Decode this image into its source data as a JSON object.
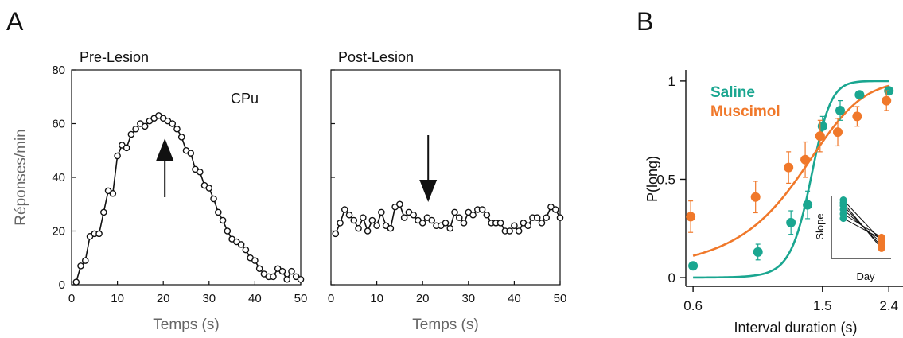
{
  "panel_labels": {
    "a": "A",
    "b": "B"
  },
  "colors": {
    "saline": "#1aa690",
    "muscimol": "#f0782a",
    "line": "#111111"
  },
  "chart_data": [
    {
      "type": "line",
      "title": "Pre-Lesion",
      "annotation": "CPu",
      "xlabel": "Temps (s)",
      "ylabel": "Réponses/min",
      "xlim": [
        0,
        50
      ],
      "ylim": [
        0,
        80
      ],
      "xticks": [
        "0",
        "10",
        "20",
        "30",
        "40",
        "50"
      ],
      "yticks": [
        "0",
        "20",
        "40",
        "60",
        "80"
      ],
      "marker": "open-circle",
      "arrow": {
        "direction": "up",
        "x": 20
      },
      "x": [
        1,
        2,
        3,
        4,
        5,
        6,
        7,
        8,
        9,
        10,
        11,
        12,
        13,
        14,
        15,
        16,
        17,
        18,
        19,
        20,
        21,
        22,
        23,
        24,
        25,
        26,
        27,
        28,
        29,
        30,
        31,
        32,
        33,
        34,
        35,
        36,
        37,
        38,
        39,
        40,
        41,
        42,
        43,
        44,
        45,
        46,
        47,
        48,
        49,
        50
      ],
      "y": [
        1,
        7,
        9,
        18,
        19,
        19,
        27,
        35,
        34,
        48,
        52,
        51,
        56,
        58,
        60,
        59,
        61,
        62,
        63,
        62,
        61,
        60,
        58,
        55,
        50,
        49,
        43,
        42,
        37,
        36,
        32,
        27,
        24,
        20,
        17,
        16,
        15,
        13,
        10,
        9,
        6,
        4,
        3,
        3,
        6,
        5,
        2,
        5,
        3,
        2
      ]
    },
    {
      "type": "line",
      "title": "Post-Lesion",
      "xlabel": "Temps (s)",
      "xlim": [
        0,
        50
      ],
      "ylim": [
        0,
        80
      ],
      "xticks": [
        "0",
        "10",
        "20",
        "30",
        "40",
        "50"
      ],
      "marker": "open-circle",
      "arrow": {
        "direction": "down",
        "x": 20
      },
      "x": [
        1,
        2,
        3,
        4,
        5,
        6,
        7,
        8,
        9,
        10,
        11,
        12,
        13,
        14,
        15,
        16,
        17,
        18,
        19,
        20,
        21,
        22,
        23,
        24,
        25,
        26,
        27,
        28,
        29,
        30,
        31,
        32,
        33,
        34,
        35,
        36,
        37,
        38,
        39,
        40,
        41,
        42,
        43,
        44,
        45,
        46,
        47,
        48,
        49,
        50
      ],
      "y": [
        19,
        23,
        28,
        26,
        24,
        21,
        25,
        20,
        24,
        22,
        27,
        22,
        21,
        29,
        30,
        25,
        27,
        26,
        24,
        23,
        25,
        24,
        22,
        22,
        23,
        21,
        27,
        25,
        23,
        27,
        26,
        28,
        28,
        26,
        23,
        23,
        23,
        20,
        20,
        22,
        20,
        23,
        22,
        25,
        25,
        23,
        25,
        29,
        28,
        25
      ]
    },
    {
      "type": "scatter",
      "xlabel": "Interval duration (s)",
      "ylabel": "P(long)",
      "xscale": "log",
      "xlim": [
        0.57,
        2.55
      ],
      "ylim": [
        -0.02,
        1.04
      ],
      "xticks": [
        "0.6",
        "1.5",
        "2.4"
      ],
      "yticks": [
        "0",
        "0.5",
        "1"
      ],
      "legend": "top-left",
      "series": [
        {
          "name": "Saline",
          "color": "#1aa690",
          "x": [
            0.6,
            0.95,
            1.2,
            1.35,
            1.5,
            1.7,
            1.95,
            2.4
          ],
          "y": [
            0.06,
            0.13,
            0.28,
            0.37,
            0.77,
            0.85,
            0.93,
            0.95
          ],
          "err": [
            0.0,
            0.04,
            0.06,
            0.07,
            0.05,
            0.05,
            0.0,
            0.0
          ],
          "fit": {
            "mid": 1.38,
            "slope": 10.0
          }
        },
        {
          "name": "Muscimol",
          "color": "#f0782a",
          "x": [
            0.6,
            0.95,
            1.2,
            1.35,
            1.5,
            1.7,
            1.95,
            2.4
          ],
          "y": [
            0.31,
            0.41,
            0.56,
            0.6,
            0.72,
            0.74,
            0.82,
            0.9
          ],
          "err": [
            0.08,
            0.08,
            0.08,
            0.09,
            0.08,
            0.07,
            0.05,
            0.05
          ],
          "fit": {
            "mid": 1.25,
            "slope": 3.2
          }
        }
      ],
      "inset": {
        "xlabel": "Day",
        "ylabel": "Slope",
        "pairs": [
          [
            0.95,
            0.22
          ],
          [
            0.85,
            0.12
          ],
          [
            0.78,
            0.18
          ],
          [
            0.7,
            0.28
          ],
          [
            0.62,
            0.25
          ],
          [
            0.9,
            0.08
          ]
        ]
      }
    }
  ]
}
